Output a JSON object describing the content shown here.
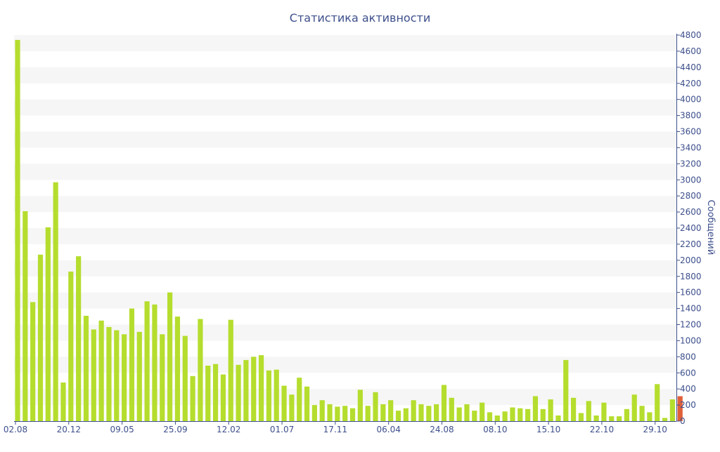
{
  "chart_data": {
    "type": "bar",
    "title": "Статистика активности",
    "xlabel": "",
    "ylabel": "Сообщений",
    "ylim": [
      0,
      4800
    ],
    "y_ticks": [
      0,
      200,
      400,
      600,
      800,
      1000,
      1200,
      1400,
      1600,
      1800,
      2000,
      2200,
      2400,
      2600,
      2800,
      3000,
      3200,
      3400,
      3600,
      3800,
      4000,
      4200,
      4400,
      4600,
      4800
    ],
    "y_axis_side": "right",
    "grid": "alternating horizontal bands",
    "x_tick_labels": [
      {
        "label": "02.08",
        "index": 0
      },
      {
        "label": "20.12",
        "index": 7
      },
      {
        "label": "09.05",
        "index": 14
      },
      {
        "label": "25.09",
        "index": 21
      },
      {
        "label": "12.02",
        "index": 28
      },
      {
        "label": "01.07",
        "index": 35
      },
      {
        "label": "17.11",
        "index": 42
      },
      {
        "label": "06.04",
        "index": 49
      },
      {
        "label": "24.08",
        "index": 56
      },
      {
        "label": "08.10",
        "index": 63
      },
      {
        "label": "15.10",
        "index": 70
      },
      {
        "label": "22.10",
        "index": 77
      },
      {
        "label": "29.10",
        "index": 84
      }
    ],
    "series": [
      {
        "color": "#b5dd2e",
        "values": [
          4740,
          2610,
          1480,
          2070,
          2410,
          2970,
          480,
          1860,
          2050,
          1310,
          1140,
          1250,
          1170,
          1130,
          1080,
          1400,
          1110,
          1490,
          1450,
          1080,
          1600,
          1300,
          1060,
          560,
          1270,
          690,
          710,
          580,
          1260,
          700,
          760,
          800,
          820,
          630,
          640,
          440,
          330,
          540,
          430,
          200,
          260,
          210,
          180,
          190,
          160,
          390,
          190,
          360,
          210,
          260,
          130,
          160,
          260,
          210,
          190,
          210,
          450,
          290,
          170,
          210,
          130,
          230,
          110,
          70,
          120,
          170,
          160,
          150,
          310,
          150,
          270,
          70,
          760,
          290,
          100,
          250,
          70,
          230,
          60,
          60,
          150,
          330,
          190,
          110,
          460,
          40,
          270,
          310
        ]
      }
    ],
    "highlight": {
      "index": 87,
      "color": "#e0603a"
    }
  }
}
